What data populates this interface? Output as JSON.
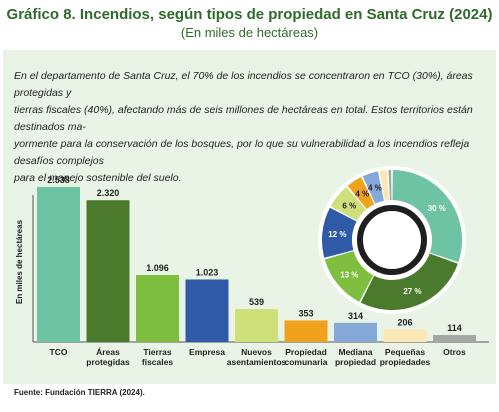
{
  "title": "Gráfico 8. Incendios, según tipos de propiedad en Santa Cruz (2024)",
  "subtitle": "(En miles de hectáreas)",
  "description_lines": [
    "En el departamento de Santa Cruz, el 70% de los incendios se concentraron en TCO (30%), áreas protegidas y",
    "tierras fiscales (40%), afectando más de seis millones de hectáreas en total. Estos territorios están destinados ma-",
    "yormente para la conservación de los bosques, por lo que su vulnerabilidad a los incendios refleja desafíos complejos",
    "para el manejo sostenible del suelo."
  ],
  "source": "Fuente: Fundación TIERRA (2024).",
  "colors": {
    "title": "#2e6b2a",
    "panel": "#eaf4e6",
    "ring": "#1f1f1f"
  },
  "chart_data": [
    {
      "type": "bar",
      "ylabel": "En miles de hectáreas",
      "categories": [
        [
          "TCO"
        ],
        [
          "Áreas",
          "protegidas"
        ],
        [
          "Tierras",
          "fiscales"
        ],
        [
          "Empresa"
        ],
        [
          "Nuevos",
          "asentamientos"
        ],
        [
          "Propiedad",
          "comunaria"
        ],
        [
          "Mediana",
          "propiedad"
        ],
        [
          "Pequeñas",
          "propiedades"
        ],
        [
          "Otros"
        ]
      ],
      "values": [
        2538,
        2320,
        1096,
        1023,
        539,
        353,
        314,
        206,
        114
      ],
      "value_labels": [
        "2.538",
        "2.320",
        "1.096",
        "1.023",
        "539",
        "353",
        "314",
        "206",
        "114"
      ],
      "colors": [
        "#6dc3a2",
        "#4a7a2b",
        "#7fbf3f",
        "#2f5aa8",
        "#cfe07a",
        "#f0a21c",
        "#84a9d9",
        "#fbe6b4",
        "#a5a5a5"
      ],
      "ylim": [
        0,
        2700
      ],
      "grid": false,
      "legend": "none"
    },
    {
      "type": "pie",
      "variant": "donut",
      "labels": [
        "30 %",
        "27 %",
        "13 %",
        "12 %",
        "6 %",
        "4 %",
        "4 %",
        "",
        ""
      ],
      "values": [
        30,
        27,
        13,
        12,
        6,
        4,
        4,
        2,
        1
      ],
      "colors": [
        "#6dc3a2",
        "#4a7a2b",
        "#7fbf3f",
        "#2f5aa8",
        "#cfe07a",
        "#f0a21c",
        "#84a9d9",
        "#fbe6b4",
        "#a5a5a5"
      ],
      "label_colors": [
        "#ffffff",
        "#ffffff",
        "#ffffff",
        "#ffffff",
        "#1f1f1f",
        "#1f1f1f",
        "#1f1f1f",
        "",
        ""
      ]
    }
  ]
}
